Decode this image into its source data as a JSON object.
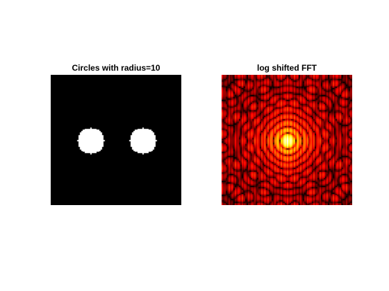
{
  "figure": {
    "background": "#ffffff",
    "panels": [
      {
        "title": "Circles with radius=10",
        "colormap": "gray",
        "image_background": "#000000",
        "shape_color": "#ffffff"
      },
      {
        "title": "log shifted FFT",
        "colormap": "hot"
      }
    ]
  },
  "image_params": {
    "grid_size": 100,
    "circle_radius": 10,
    "circle_centers": [
      [
        30,
        50
      ],
      [
        70,
        50
      ]
    ]
  }
}
